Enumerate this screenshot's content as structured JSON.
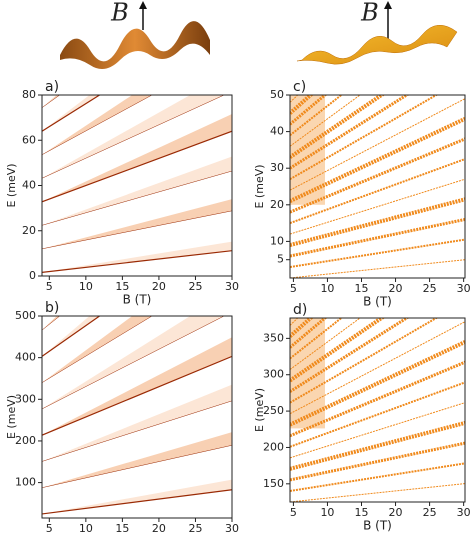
{
  "illustrations": [
    {
      "label": "B"
    },
    {
      "label": "B"
    }
  ],
  "chart_data": [
    {
      "type": "density",
      "label": "a)",
      "xlabel": "B (T)",
      "ylabel": "E (meV)",
      "color": "#f5b78a",
      "xlim": [
        4,
        30
      ],
      "ylim": [
        0,
        80
      ],
      "xticks": [
        5,
        10,
        15,
        20,
        25,
        30
      ],
      "yticks": [
        0,
        20,
        40,
        60,
        80
      ]
    },
    {
      "type": "density",
      "label": "b)",
      "xlabel": "B (T)",
      "ylabel": "E (meV)",
      "color": "#f5b78a",
      "xlim": [
        4,
        30
      ],
      "ylim": [
        15,
        500
      ],
      "xticks": [
        5,
        10,
        15,
        20,
        25,
        30
      ],
      "yticks": [
        100,
        200,
        300,
        400,
        500
      ]
    },
    {
      "type": "dots",
      "label": "c)",
      "xlabel": "B (T)",
      "ylabel": "E (meV)",
      "color": "#f08a1c",
      "xlim": [
        4.5,
        30.2
      ],
      "ylim": [
        0,
        50
      ],
      "xticks": [
        5,
        10,
        15,
        20,
        25,
        30
      ],
      "yticks": [
        5,
        10,
        20,
        30,
        40,
        50
      ]
    },
    {
      "type": "dots",
      "label": "d)",
      "xlabel": "B (T)",
      "ylabel": "E (meV)",
      "color": "#f08a1c",
      "xlim": [
        4.5,
        30.2
      ],
      "ylim": [
        125,
        378
      ],
      "xticks": [
        5,
        10,
        15,
        20,
        25,
        30
      ],
      "yticks": [
        150,
        200,
        250,
        300,
        350
      ]
    }
  ]
}
